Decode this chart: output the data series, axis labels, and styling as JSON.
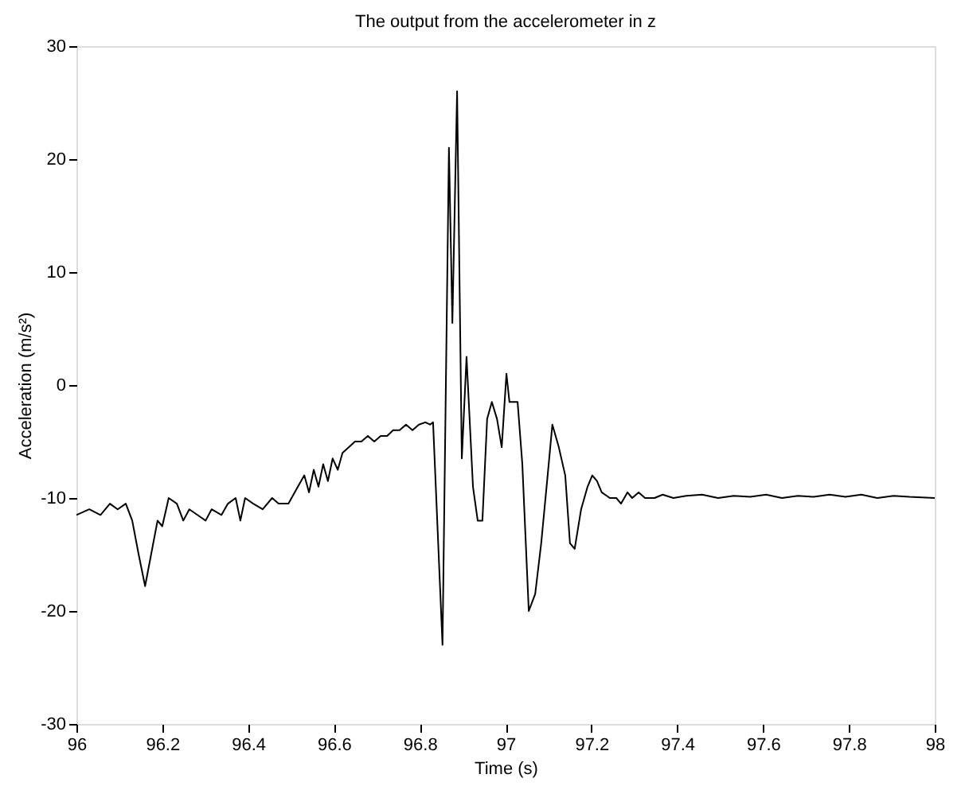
{
  "chart_data": {
    "type": "line",
    "title": "The output from the accelerometer in z",
    "xlabel": "Time (s)",
    "ylabel": "Acceleration (m/s²)",
    "xlim": [
      96,
      98
    ],
    "xticks": [
      96,
      96.2,
      96.4,
      96.6,
      96.8,
      97,
      97.2,
      97.4,
      97.6,
      97.8,
      98
    ],
    "ylim": [
      -30,
      30
    ],
    "yticks": [
      -30,
      -20,
      -10,
      0,
      10,
      20,
      30
    ],
    "grid": false,
    "marker": "none",
    "line_style": "solid",
    "series": [
      {
        "color": "#000000",
        "x": [
          96.0,
          96.03,
          96.056,
          96.078,
          96.096,
          96.115,
          96.13,
          96.145,
          96.16,
          96.174,
          96.189,
          96.2,
          96.215,
          96.234,
          96.249,
          96.263,
          96.282,
          96.301,
          96.315,
          96.338,
          96.353,
          96.371,
          96.382,
          96.393,
          96.412,
          96.434,
          96.456,
          96.471,
          96.494,
          96.516,
          96.531,
          96.542,
          96.553,
          96.564,
          96.575,
          96.586,
          96.597,
          96.609,
          96.62,
          96.635,
          96.649,
          96.664,
          96.679,
          96.694,
          96.709,
          96.724,
          96.738,
          96.753,
          96.768,
          96.783,
          96.798,
          96.813,
          96.824,
          96.831,
          96.853,
          96.868,
          96.876,
          96.887,
          96.898,
          96.909,
          96.924,
          96.935,
          96.946,
          96.957,
          96.968,
          96.98,
          96.991,
          97.002,
          97.009,
          97.02,
          97.028,
          97.039,
          97.054,
          97.069,
          97.083,
          97.098,
          97.109,
          97.124,
          97.139,
          97.15,
          97.161,
          97.176,
          97.191,
          97.202,
          97.213,
          97.224,
          97.243,
          97.258,
          97.269,
          97.284,
          97.295,
          97.31,
          97.325,
          97.347,
          97.366,
          97.391,
          97.421,
          97.458,
          97.495,
          97.532,
          97.57,
          97.607,
          97.644,
          97.681,
          97.718,
          97.755,
          97.792,
          97.829,
          97.866,
          97.904,
          97.941,
          98.0
        ],
        "values": [
          -11.5,
          -11,
          -11.5,
          -10.5,
          -11,
          -10.5,
          -12,
          -15,
          -17.8,
          -15,
          -12,
          -12.5,
          -10,
          -10.5,
          -12,
          -11,
          -11.5,
          -12,
          -11,
          -11.5,
          -10.5,
          -10,
          -12,
          -10,
          -10.5,
          -11,
          -10,
          -10.5,
          -10.5,
          -9,
          -8,
          -9.5,
          -7.5,
          -9,
          -7,
          -8.5,
          -6.5,
          -7.5,
          -6,
          -5.5,
          -5,
          -5,
          -4.5,
          -5,
          -4.5,
          -4.5,
          -4,
          -4,
          -3.5,
          -4,
          -3.5,
          -3.3,
          -3.5,
          -3.3,
          -23,
          21,
          5.5,
          26,
          -6.5,
          2.5,
          -9,
          -12,
          -12,
          -3,
          -1.5,
          -3,
          -5.5,
          1,
          -1.5,
          -1.5,
          -1.5,
          -7,
          -20,
          -18.5,
          -14,
          -8,
          -3.5,
          -5.5,
          -8,
          -14,
          -14.5,
          -11,
          -9,
          -8,
          -8.5,
          -9.5,
          -10,
          -10,
          -10.5,
          -9.5,
          -10,
          -9.5,
          -10,
          -10,
          -9.7,
          -10,
          -9.8,
          -9.7,
          -10,
          -9.8,
          -9.9,
          -9.7,
          -10,
          -9.8,
          -9.9,
          -9.7,
          -9.9,
          -9.7,
          -10,
          -9.8,
          -9.9,
          -10
        ]
      }
    ]
  }
}
